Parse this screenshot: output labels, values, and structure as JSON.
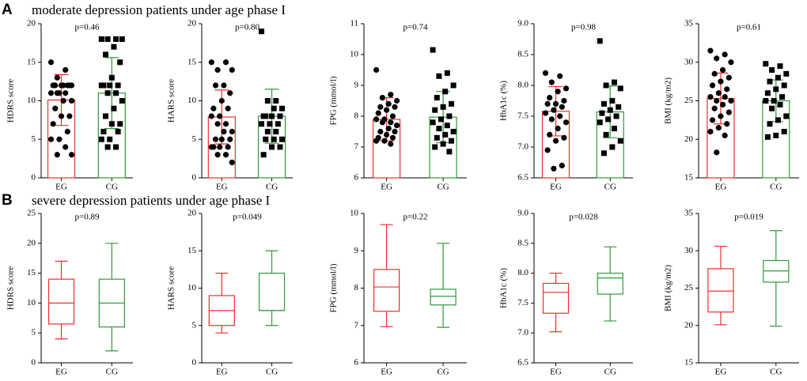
{
  "figure": {
    "sections": [
      {
        "label": "A",
        "title": "moderate depression patients under age phase I"
      },
      {
        "label": "B",
        "title": "severe depression patients under age phase I"
      }
    ]
  },
  "chart_data": [
    {
      "type": "bar",
      "annotation": "p=0.46",
      "ylabel": "HDRS score",
      "categories": [
        "EG",
        "CG"
      ],
      "colors": [
        "#e8302e",
        "#2e9a3a"
      ],
      "values": [
        10.1,
        11.0
      ],
      "errors": [
        3.3,
        4.6
      ],
      "point_shapes": [
        "circle",
        "square"
      ],
      "points": [
        [
          15,
          14,
          13,
          12,
          12,
          12,
          12,
          12,
          12,
          12,
          11,
          11,
          11,
          11,
          10,
          10,
          9,
          8,
          8,
          7,
          6,
          5,
          5,
          4,
          3,
          3
        ],
        [
          18,
          18,
          18,
          18,
          17,
          16,
          15,
          13,
          12,
          12,
          12,
          12,
          11,
          11,
          10,
          9,
          8,
          7,
          7,
          6,
          6,
          5,
          5,
          4,
          4
        ]
      ],
      "ylim": [
        0,
        20
      ],
      "yticks": [
        0,
        5,
        10,
        15,
        20
      ]
    },
    {
      "type": "bar",
      "annotation": "p=0.80",
      "ylabel": "HARS score",
      "categories": [
        "EG",
        "CG"
      ],
      "colors": [
        "#e8302e",
        "#2e9a3a"
      ],
      "values": [
        7.9,
        8.0
      ],
      "errors": [
        3.5,
        3.5
      ],
      "point_shapes": [
        "circle",
        "square"
      ],
      "points": [
        [
          15,
          15,
          14,
          14,
          12,
          12,
          11,
          10,
          9,
          9,
          8,
          8,
          7,
          7,
          6,
          6,
          5,
          5,
          5,
          4,
          4,
          4,
          4,
          3,
          3,
          2
        ],
        [
          19,
          10,
          10,
          9,
          9,
          8,
          8,
          8,
          8,
          7,
          7,
          7,
          6,
          6,
          5,
          5,
          5,
          4,
          4,
          3
        ]
      ],
      "ylim": [
        0,
        20
      ],
      "yticks": [
        0,
        5,
        10,
        15,
        20
      ]
    },
    {
      "type": "bar",
      "annotation": "p=0.74",
      "ylabel": "FPG (mmol/l)",
      "categories": [
        "EG",
        "CG"
      ],
      "colors": [
        "#e8302e",
        "#2e9a3a"
      ],
      "values": [
        7.9,
        7.97
      ],
      "errors": [
        0.7,
        0.83
      ],
      "point_shapes": [
        "circle",
        "square"
      ],
      "points": [
        [
          9.5,
          8.7,
          8.6,
          8.5,
          8.4,
          8.3,
          8.3,
          8.2,
          8.1,
          8.0,
          7.9,
          7.9,
          7.8,
          7.8,
          7.7,
          7.6,
          7.5,
          7.5,
          7.4,
          7.3,
          7.3,
          7.2,
          7.2,
          7.1
        ],
        [
          10.15,
          9.4,
          9.3,
          9.0,
          8.8,
          8.6,
          8.4,
          8.3,
          8.2,
          8.0,
          7.9,
          7.8,
          7.7,
          7.6,
          7.5,
          7.4,
          7.3,
          7.2,
          7.1,
          7.0,
          6.85
        ]
      ],
      "ylim": [
        6,
        11
      ],
      "yticks": [
        6,
        7,
        8,
        9,
        10,
        11
      ]
    },
    {
      "type": "bar",
      "annotation": "p=0.98",
      "ylabel": "HbA1c (%)",
      "categories": [
        "EG",
        "CG"
      ],
      "colors": [
        "#e8302e",
        "#2e9a3a"
      ],
      "values": [
        7.58,
        7.57
      ],
      "errors": [
        0.4,
        0.42
      ],
      "point_shapes": [
        "circle",
        "square"
      ],
      "points": [
        [
          8.2,
          8.15,
          8.05,
          7.95,
          7.9,
          7.8,
          7.75,
          7.7,
          7.7,
          7.65,
          7.6,
          7.55,
          7.5,
          7.45,
          7.4,
          7.3,
          7.2,
          7.15,
          7.1,
          6.95,
          6.7,
          6.65
        ],
        [
          8.72,
          8.05,
          8.0,
          7.95,
          7.75,
          7.7,
          7.65,
          7.6,
          7.55,
          7.5,
          7.45,
          7.4,
          7.3,
          7.2,
          7.1,
          7.0,
          6.9
        ]
      ],
      "ylim": [
        6.5,
        9
      ],
      "yticks": [
        6.5,
        {
          "value": 7,
          "label": "7.0"
        },
        7.5,
        {
          "value": 8,
          "label": "8.0"
        },
        8.5,
        {
          "value": 9,
          "label": "9.0"
        }
      ]
    },
    {
      "type": "bar",
      "annotation": "p=0.61",
      "ylabel": "BMI (kg/m2)",
      "categories": [
        "EG",
        "CG"
      ],
      "colors": [
        "#e8302e",
        "#2e9a3a"
      ],
      "values": [
        25.3,
        25.0
      ],
      "errors": [
        3.3,
        2.7
      ],
      "point_shapes": [
        "circle",
        "square"
      ],
      "points": [
        [
          31.5,
          31,
          30.5,
          30,
          29,
          28.5,
          28,
          27.5,
          27,
          26.5,
          26,
          25.5,
          25.5,
          25,
          25,
          24.5,
          24,
          23.5,
          23,
          22.5,
          22,
          21.5,
          21,
          20.5,
          18.3
        ],
        [
          29.8,
          29.5,
          29,
          28.5,
          28,
          27.5,
          27,
          26.5,
          26,
          25.5,
          25,
          25,
          24.5,
          24,
          23,
          22.5,
          22,
          21,
          20.5,
          20.3
        ]
      ],
      "ylim": [
        15,
        35
      ],
      "yticks": [
        15,
        20,
        25,
        30,
        35
      ]
    },
    {
      "type": "box",
      "annotation": "p=0.89",
      "ylabel": "HDRS score",
      "categories": [
        "EG",
        "CG"
      ],
      "colors": [
        "#e8302e",
        "#2e9a3a"
      ],
      "boxes": [
        {
          "min": 4,
          "q1": 6.5,
          "median": 10,
          "q3": 14,
          "max": 17
        },
        {
          "min": 2,
          "q1": 6,
          "median": 10,
          "q3": 14,
          "max": 20
        }
      ],
      "ylim": [
        0,
        25
      ],
      "yticks": [
        0,
        5,
        10,
        15,
        20,
        25
      ]
    },
    {
      "type": "box",
      "annotation": "p=0.049",
      "ylabel": "HARS score",
      "categories": [
        "EG",
        "CG"
      ],
      "colors": [
        "#e8302e",
        "#2e9a3a"
      ],
      "boxes": [
        {
          "min": 4,
          "q1": 5,
          "median": 7,
          "q3": 9,
          "max": 12
        },
        {
          "min": 5,
          "q1": 7,
          "median": 7,
          "q3": 12,
          "max": 15
        }
      ],
      "ylim": [
        0,
        20
      ],
      "yticks": [
        0,
        5,
        10,
        15,
        20
      ]
    },
    {
      "type": "box",
      "annotation": "p=0.22",
      "ylabel": "FPG (mmol/l)",
      "categories": [
        "EG",
        "CG"
      ],
      "colors": [
        "#e8302e",
        "#2e9a3a"
      ],
      "boxes": [
        {
          "min": 6.97,
          "q1": 7.38,
          "median": 8.03,
          "q3": 8.5,
          "max": 9.7
        },
        {
          "min": 6.95,
          "q1": 7.55,
          "median": 7.78,
          "q3": 7.97,
          "max": 9.2
        }
      ],
      "ylim": [
        6,
        10
      ],
      "yticks": [
        6,
        7,
        8,
        9,
        10
      ]
    },
    {
      "type": "box",
      "annotation": "p=0.028",
      "ylabel": "HbA1c (%)",
      "categories": [
        "EG",
        "CG"
      ],
      "colors": [
        "#e8302e",
        "#2e9a3a"
      ],
      "boxes": [
        {
          "min": 7.02,
          "q1": 7.33,
          "median": 7.68,
          "q3": 7.83,
          "max": 8.0
        },
        {
          "min": 7.2,
          "q1": 7.65,
          "median": 7.92,
          "q3": 8.0,
          "max": 8.44
        }
      ],
      "ylim": [
        6.5,
        9
      ],
      "yticks": [
        6.5,
        {
          "value": 7,
          "label": "7.0"
        },
        7.5,
        {
          "value": 8,
          "label": "8.0"
        },
        8.5,
        {
          "value": 9,
          "label": "9.0"
        }
      ]
    },
    {
      "type": "box",
      "annotation": "p=0.019",
      "ylabel": "BMI (kg/m2)",
      "categories": [
        "EG",
        "CG"
      ],
      "colors": [
        "#e8302e",
        "#2e9a3a"
      ],
      "boxes": [
        {
          "min": 20.1,
          "q1": 21.8,
          "median": 24.6,
          "q3": 27.6,
          "max": 30.6
        },
        {
          "min": 19.9,
          "q1": 25.8,
          "median": 27.3,
          "q3": 28.7,
          "max": 32.7
        }
      ],
      "ylim": [
        15,
        35
      ],
      "yticks": [
        15,
        20,
        25,
        30,
        35
      ]
    }
  ]
}
